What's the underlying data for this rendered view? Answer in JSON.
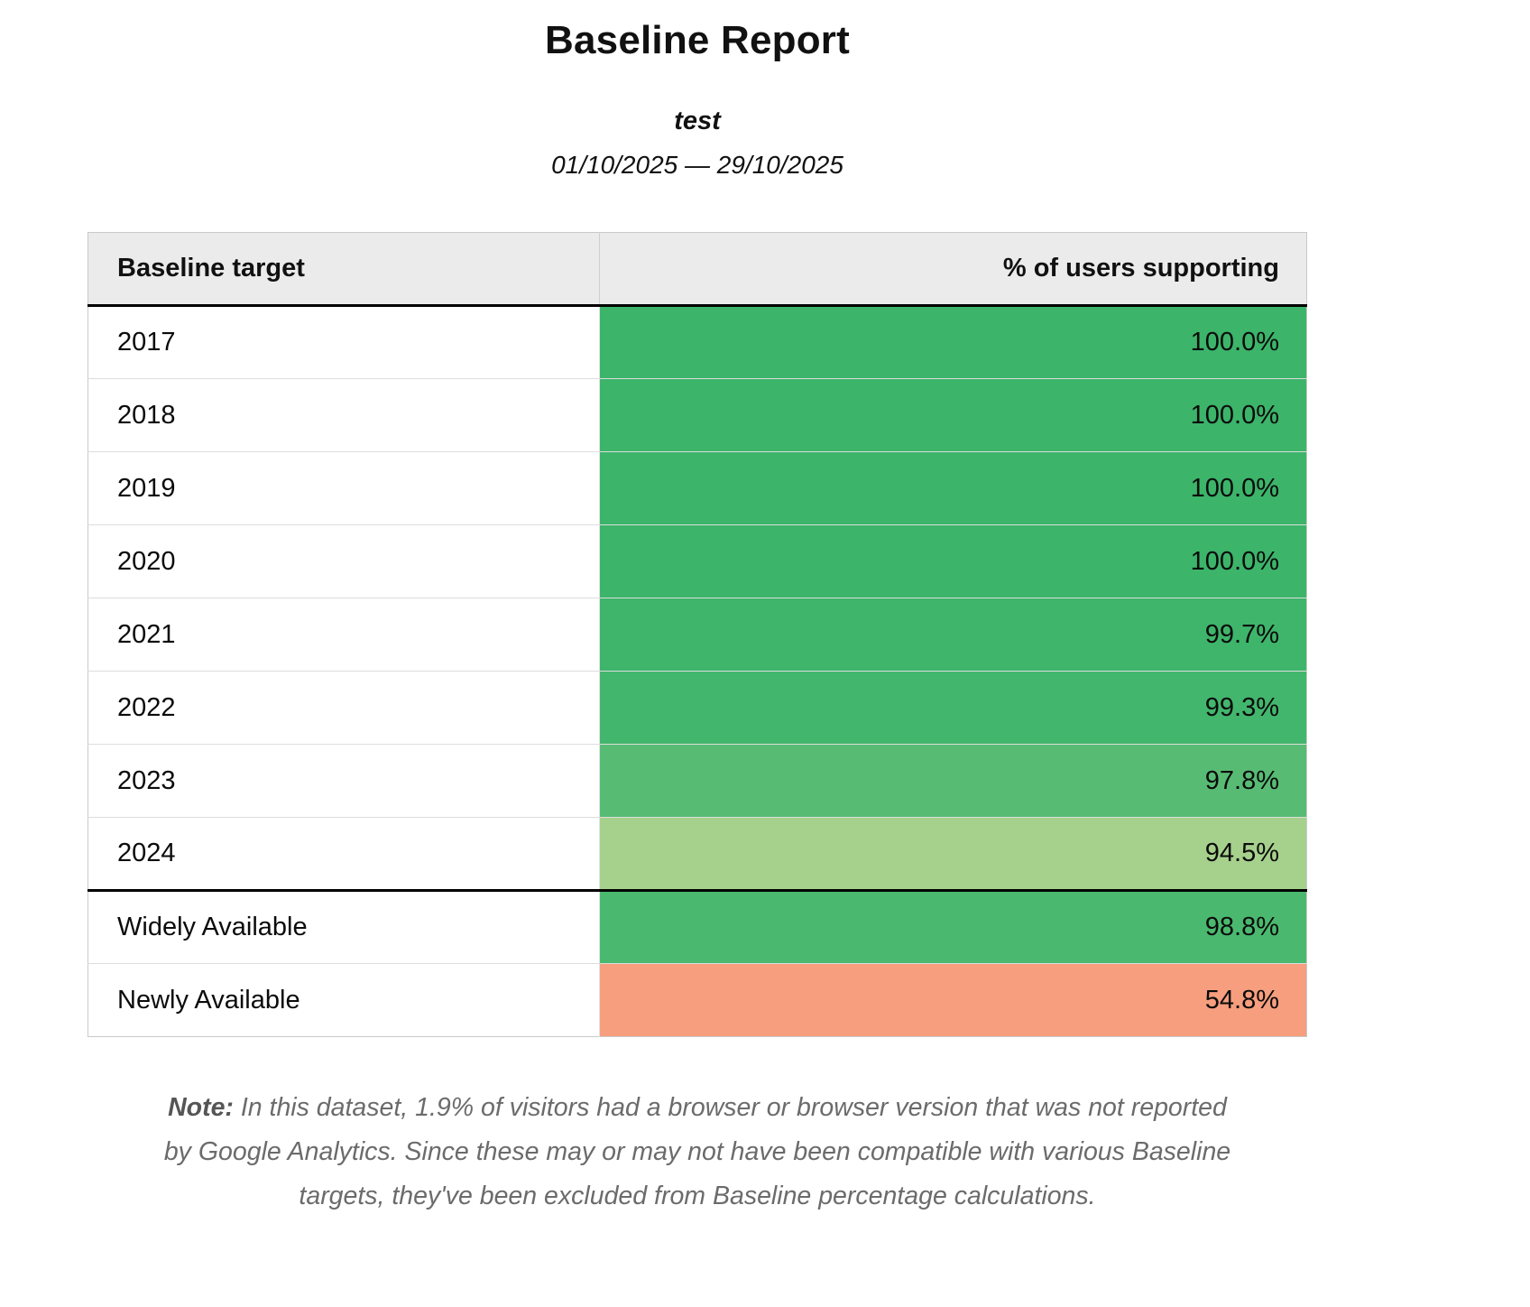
{
  "report": {
    "title": "Baseline Report",
    "subtitle": "test",
    "date_range": "01/10/2025 — 29/10/2025"
  },
  "table": {
    "headers": [
      "Baseline target",
      "% of users supporting"
    ],
    "rows": [
      {
        "target": "2017",
        "value": "100.0%",
        "color": "#3cb46a",
        "thick_top": false
      },
      {
        "target": "2018",
        "value": "100.0%",
        "color": "#3cb46a",
        "thick_top": false
      },
      {
        "target": "2019",
        "value": "100.0%",
        "color": "#3cb46a",
        "thick_top": false
      },
      {
        "target": "2020",
        "value": "100.0%",
        "color": "#3cb46a",
        "thick_top": false
      },
      {
        "target": "2021",
        "value": "99.7%",
        "color": "#3eb56b",
        "thick_top": false
      },
      {
        "target": "2022",
        "value": "99.3%",
        "color": "#43b66d",
        "thick_top": false
      },
      {
        "target": "2023",
        "value": "97.8%",
        "color": "#58bb74",
        "thick_top": false
      },
      {
        "target": "2024",
        "value": "94.5%",
        "color": "#a6d18c",
        "thick_top": false
      },
      {
        "target": "Widely Available",
        "value": "98.8%",
        "color": "#4ab96f",
        "thick_top": true
      },
      {
        "target": "Newly Available",
        "value": "54.8%",
        "color": "#f69e7e",
        "thick_top": false
      }
    ]
  },
  "note": {
    "label": "Note:",
    "text": "In this dataset, 1.9% of visitors had a browser or browser version that was not reported by Google Analytics. Since these may or may not have been compatible with various Baseline targets, they've been excluded from Baseline percentage calculations."
  },
  "colors": {
    "header_bg": "#ebebeb",
    "row_divider": "#dddddd",
    "thick_border": "#000000",
    "note_text": "#6b6b6b"
  },
  "chart_data": {
    "type": "table",
    "title": "Baseline Report",
    "subtitle": "test",
    "date_range": "01/10/2025 — 29/10/2025",
    "columns": [
      "Baseline target",
      "% of users supporting"
    ],
    "rows": [
      [
        "2017",
        100.0
      ],
      [
        "2018",
        100.0
      ],
      [
        "2019",
        100.0
      ],
      [
        "2020",
        100.0
      ],
      [
        "2021",
        99.7
      ],
      [
        "2022",
        99.3
      ],
      [
        "2023",
        97.8
      ],
      [
        "2024",
        94.5
      ],
      [
        "Widely Available",
        98.8
      ],
      [
        "Newly Available",
        54.8
      ]
    ],
    "legend_note": "cell background encodes support level: green high, light green mid, salmon low"
  }
}
